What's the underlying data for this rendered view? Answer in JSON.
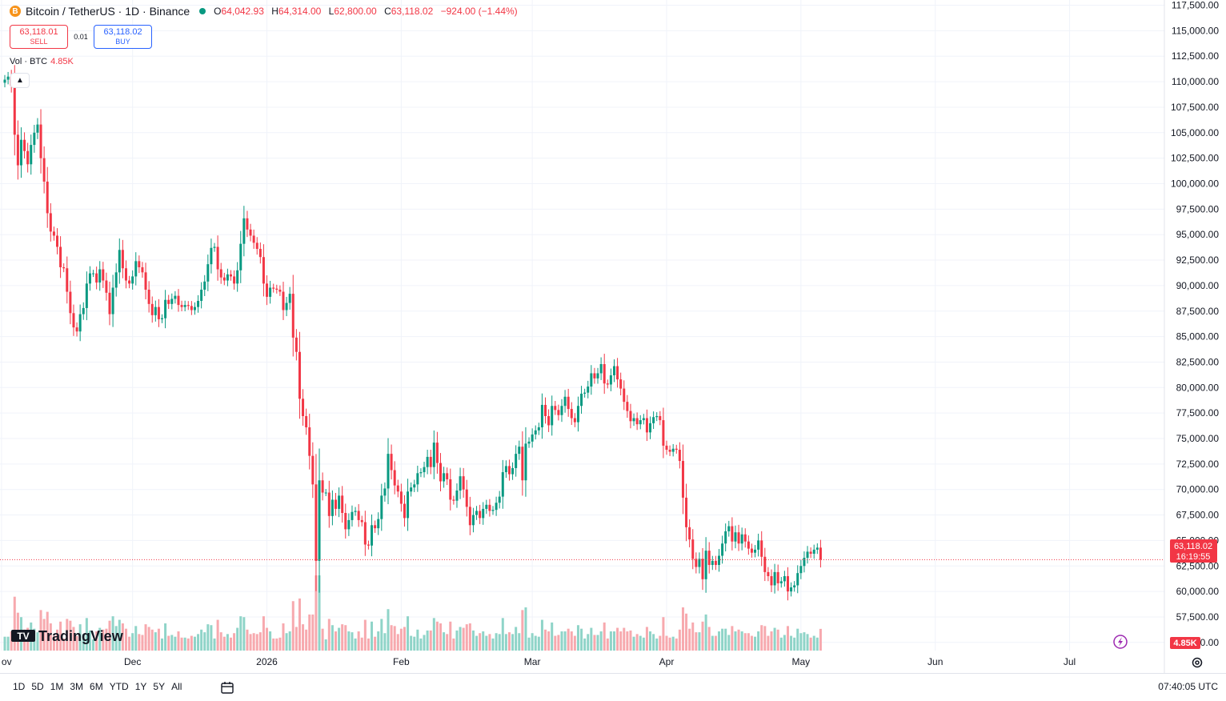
{
  "header": {
    "coin_icon": "B",
    "symbol_text": "Bitcoin / TetherUS · 1D · Binance",
    "ohlc": {
      "o_label": "O",
      "o": "64,042.93",
      "h_label": "H",
      "h": "64,314.00",
      "l_label": "L",
      "l": "62,800.00",
      "c_label": "C",
      "c": "63,118.02",
      "change": "−924.00 (−1.44%)"
    }
  },
  "trade": {
    "sell_price": "63,118.01",
    "sell_label": "SELL",
    "spread": "0.01",
    "buy_price": "63,118.02",
    "buy_label": "BUY"
  },
  "volume_legend": {
    "label": "Vol · BTC",
    "value": "4.85K"
  },
  "bottom_bar": {
    "ranges": [
      "1D",
      "5D",
      "1M",
      "3M",
      "6M",
      "YTD",
      "1Y",
      "5Y",
      "All"
    ],
    "clock": "07:40:05 UTC"
  },
  "colors": {
    "up": "#089981",
    "down": "#f23645",
    "up_vol": "#8fd4c8",
    "down_vol": "#f7a9ae",
    "grid": "#f0f3fa"
  },
  "icons": [
    "bitcoin-icon",
    "status-dot-icon",
    "chevron-up-icon",
    "calendar-goto-icon",
    "lightning-icon",
    "settings-gear-icon"
  ],
  "chart_data": {
    "type": "candlestick",
    "title": "Bitcoin / TetherUS · 1D · Binance",
    "y_axis": {
      "ticks": [
        "117,500.00",
        "115,000.00",
        "112,500.00",
        "110,000.00",
        "107,500.00",
        "105,000.00",
        "102,500.00",
        "100,000.00",
        "97,500.00",
        "95,000.00",
        "92,500.00",
        "90,000.00",
        "87,500.00",
        "85,000.00",
        "82,500.00",
        "80,000.00",
        "77,500.00",
        "75,000.00",
        "72,500.00",
        "70,000.00",
        "67,500.00",
        "65,000.00",
        "62,500.00",
        "60,000.00",
        "57,500.00",
        "55,000.00"
      ],
      "range": [
        54200,
        117700
      ]
    },
    "x_axis": {
      "ticks": [
        {
          "label": "ov",
          "index": -1
        },
        {
          "label": "Dec",
          "index": 39
        },
        {
          "label": "2026",
          "index": 80
        },
        {
          "label": "Feb",
          "index": 121
        },
        {
          "label": "Mar",
          "index": 161
        },
        {
          "label": "Apr",
          "index": 202
        },
        {
          "label": "May",
          "index": 243
        },
        {
          "label": "Jun",
          "index": 284
        },
        {
          "label": "Jul",
          "index": 325
        }
      ]
    },
    "last_price": {
      "price": "63,118.02",
      "countdown": "16:19:55",
      "value": 63118.02
    },
    "volume_last": "4.85K",
    "closes": [
      110200,
      110500,
      109600,
      104800,
      101800,
      104300,
      103200,
      101900,
      103800,
      105000,
      105800,
      102500,
      100200,
      97100,
      95300,
      94900,
      93800,
      91800,
      91700,
      89400,
      87300,
      85900,
      85500,
      87200,
      87800,
      90200,
      91200,
      91200,
      90300,
      91600,
      90500,
      89300,
      87200,
      89800,
      91300,
      93500,
      91700,
      90500,
      90200,
      90900,
      92400,
      91800,
      91300,
      89600,
      88200,
      87100,
      87900,
      86700,
      86800,
      88600,
      88200,
      88700,
      89000,
      88100,
      87900,
      88100,
      88000,
      87600,
      87900,
      88500,
      89600,
      90400,
      92100,
      93700,
      93800,
      91600,
      90800,
      90500,
      91100,
      90900,
      90200,
      91500,
      94100,
      96600,
      95500,
      94900,
      94200,
      93600,
      92800,
      90200,
      88900,
      89800,
      89700,
      89600,
      89400,
      87600,
      88300,
      89200,
      84900,
      83500,
      78900,
      77200,
      76100,
      73300,
      70500,
      63000,
      70900,
      69700,
      69700,
      67400,
      69000,
      68100,
      69400,
      67700,
      66100,
      67000,
      67800,
      67900,
      67000,
      66800,
      64600,
      64500,
      66500,
      66200,
      67100,
      69400,
      70100,
      73500,
      71900,
      70400,
      69800,
      68600,
      67200,
      69800,
      70200,
      70500,
      71600,
      71700,
      72200,
      73200,
      72200,
      74600,
      72600,
      70800,
      71600,
      71000,
      69000,
      68900,
      69900,
      71300,
      70000,
      68300,
      66500,
      67500,
      67900,
      67200,
      68100,
      68500,
      67900,
      68000,
      68700,
      69300,
      71700,
      72300,
      71500,
      72100,
      73500,
      74200,
      70900,
      74500,
      74700,
      75400,
      75800,
      76100,
      78300,
      77200,
      76300,
      78200,
      77800,
      77300,
      78200,
      79100,
      77900,
      77000,
      76600,
      78200,
      79400,
      79500,
      80100,
      81400,
      80900,
      81400,
      82300,
      80400,
      80300,
      81200,
      82100,
      80800,
      79900,
      78600,
      77700,
      76700,
      77000,
      76400,
      76800,
      77000,
      75600,
      76500,
      77100,
      77200,
      76800,
      74300,
      73900,
      73700,
      74000,
      73900,
      72800,
      69200,
      66300,
      65100,
      63200,
      62400,
      63200,
      61200,
      64000,
      62600,
      63000,
      62600,
      63500,
      64700,
      65900,
      66400,
      64900,
      65800,
      64700,
      65600,
      64900,
      64200,
      63800,
      64100,
      65000,
      63400,
      61900,
      61500,
      60600,
      61900,
      60800,
      61000,
      61500,
      60000,
      60400,
      60600,
      61800,
      62500,
      63300,
      63900,
      63700,
      64100,
      64300,
      63118
    ]
  }
}
